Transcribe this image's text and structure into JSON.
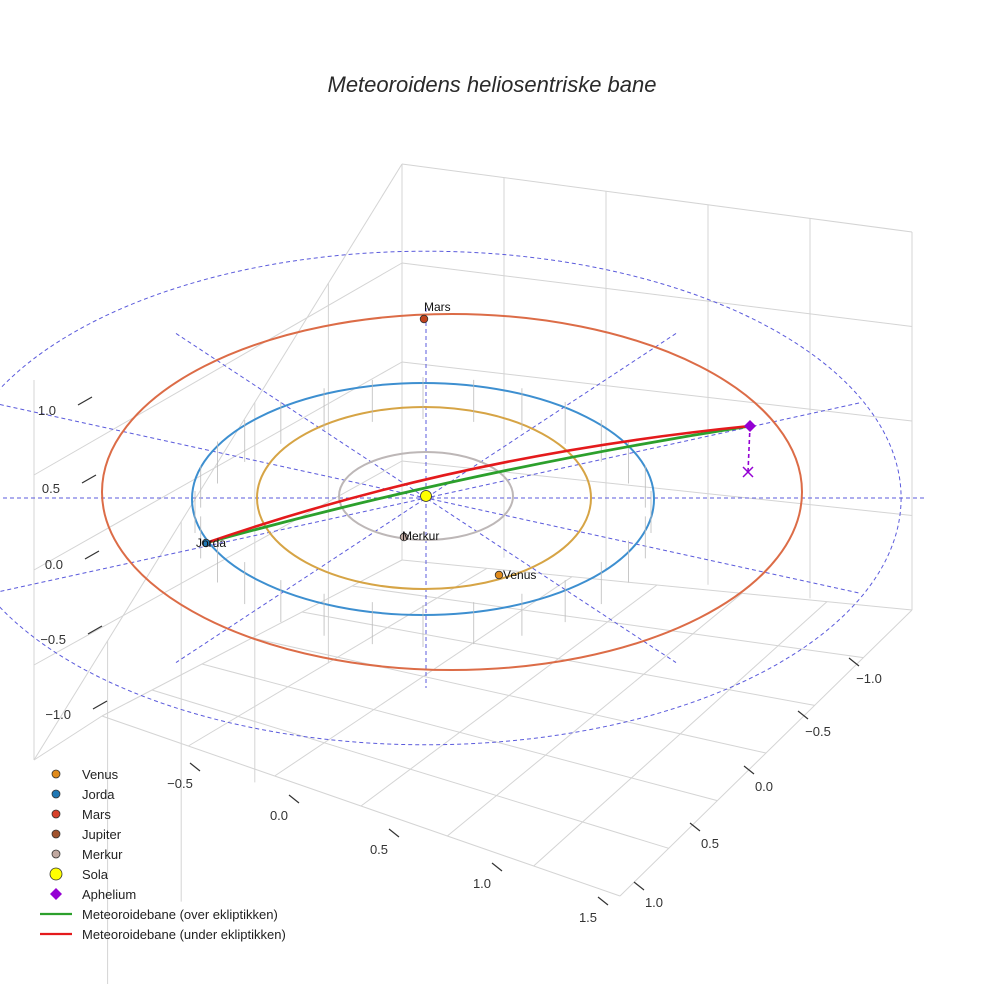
{
  "chart_data": {
    "type": "scatter3d",
    "title": "Meteoroidens heliosentriske bane",
    "axes": {
      "x": {
        "range": [
          -1.0,
          1.0
        ],
        "ticks": [
          "−1.0",
          "−0.5",
          "0.0",
          "0.5",
          "1.0"
        ]
      },
      "y": {
        "range": [
          -0.7,
          1.5
        ],
        "ticks": [
          "−0.5",
          "0.0",
          "0.5",
          "1.0",
          "1.5"
        ]
      },
      "z": {
        "range": [
          -1.0,
          1.0
        ],
        "ticks": [
          "−1.0",
          "−0.5",
          "0.0",
          "0.5",
          "1.0"
        ]
      },
      "grid": true
    },
    "orbits": [
      {
        "name": "Merkur",
        "radius_au": 0.387,
        "color": "#bdb7b7"
      },
      {
        "name": "Venus",
        "radius_au": 0.723,
        "color": "#d6a445"
      },
      {
        "name": "Jorda",
        "radius_au": 1.0,
        "color": "#3d8fd0"
      },
      {
        "name": "Mars",
        "radius_au": 1.524,
        "color": "#dc6c47"
      }
    ],
    "reference_grid": {
      "circle_radius_au": 1.85,
      "style": "dashed",
      "color": "#5b5bdc"
    },
    "bodies": [
      {
        "name": "Mars",
        "x": 0.0,
        "y": 1.524,
        "z": 0,
        "color": "#c0431e",
        "label": "Mars"
      },
      {
        "name": "Jorda",
        "x": -1.0,
        "y": -0.1,
        "z": 0,
        "color": "#1f77b4",
        "label": "Jorda"
      },
      {
        "name": "Venus",
        "x": 0.16,
        "y": -0.7,
        "z": 0,
        "color": "#e08a1a",
        "label": "Venus"
      },
      {
        "name": "Merkur",
        "x": -0.05,
        "y": -0.38,
        "z": 0,
        "color": "#c0a8a0",
        "label": "Merkur"
      },
      {
        "name": "Sola",
        "x": 0.0,
        "y": 0.0,
        "z": 0,
        "color": "#ffff00",
        "label": ""
      }
    ],
    "meteoroid": {
      "start": {
        "x": -1.0,
        "y": -0.1,
        "z": 0
      },
      "aphelium": {
        "x": 1.55,
        "y": 0.35,
        "z": 0.12
      },
      "aphelium_projection": {
        "x": 1.55,
        "y": 0.35,
        "z": 0
      }
    },
    "legend": {
      "position": "bottom-left",
      "items": [
        {
          "label": "Venus",
          "symbol": "circle",
          "color": "#e08a1a"
        },
        {
          "label": "Jorda",
          "symbol": "circle",
          "color": "#1f77b4"
        },
        {
          "label": "Mars",
          "symbol": "circle",
          "color": "#d6412a"
        },
        {
          "label": "Jupiter",
          "symbol": "circle",
          "color": "#a0522d"
        },
        {
          "label": "Merkur",
          "symbol": "circle",
          "color": "#c0a8a0"
        },
        {
          "label": "Sola",
          "symbol": "circle-large",
          "color": "#ffff00"
        },
        {
          "label": "Aphelium",
          "symbol": "diamond",
          "color": "#9400d3"
        },
        {
          "label": "Meteoroidebane (over ekliptikken)",
          "symbol": "line",
          "color": "#2ca02c"
        },
        {
          "label": "Meteoroidebane (under ekliptikken)",
          "symbol": "line",
          "color": "#e41a1c"
        }
      ]
    }
  }
}
